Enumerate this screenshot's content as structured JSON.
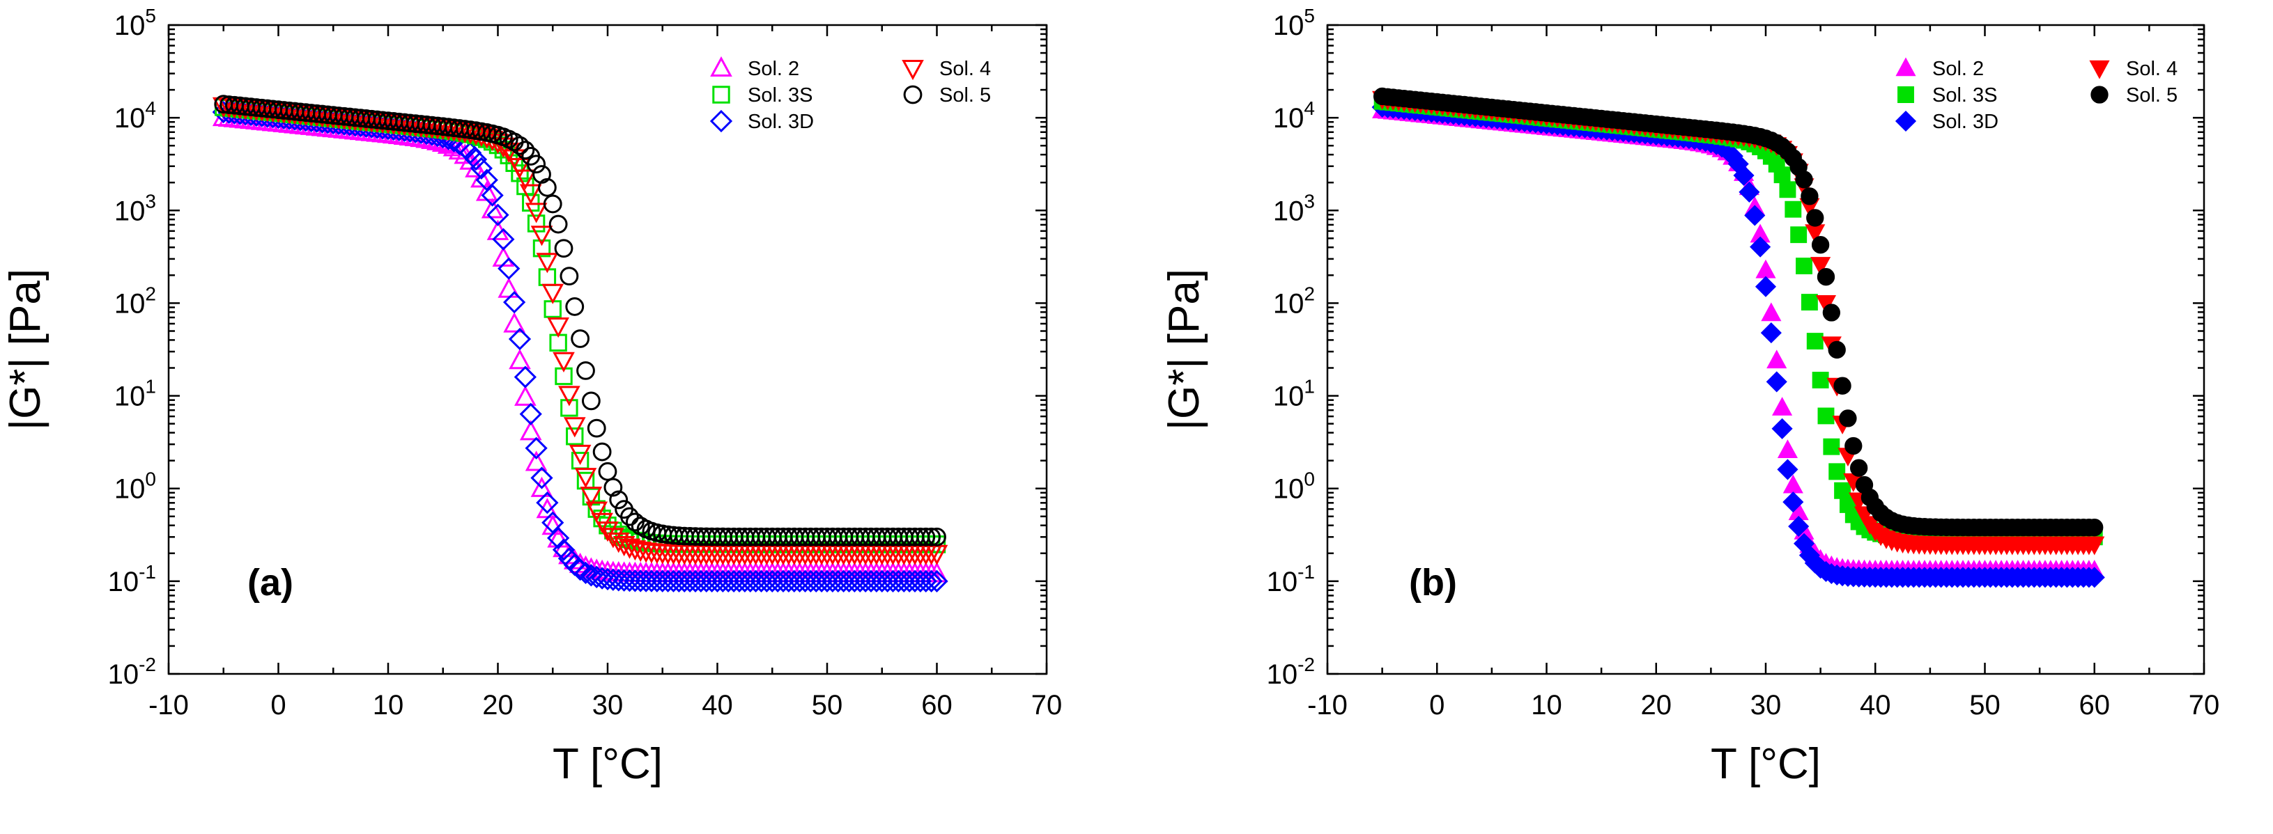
{
  "chart_data": [
    {
      "id": "a",
      "type": "scatter",
      "panel_label": "(a)",
      "filled": false,
      "xlabel": "T [°C]",
      "ylabel": "|G*| [Pa]",
      "xlim": [
        -10,
        70
      ],
      "ylim_log10": [
        -2,
        5
      ],
      "xticks": [
        -10,
        0,
        10,
        20,
        30,
        40,
        50,
        60,
        70
      ],
      "xtick_labels": [
        "-10",
        "0",
        "10",
        "20",
        "30",
        "40",
        "50",
        "60",
        "70"
      ],
      "ytick_exponents": [
        -2,
        -1,
        0,
        1,
        2,
        3,
        4,
        5
      ],
      "ytick_base": "10",
      "ytick_exps_text": [
        "-2",
        "-1",
        "0",
        "1",
        "2",
        "3",
        "4",
        "5"
      ],
      "y_scale": "log",
      "legend_position": "top-right",
      "series": [
        {
          "name": "Sol. 2",
          "marker": "triangle-up",
          "color": "#ff00ff",
          "T_start": -5,
          "T_end": 60,
          "T_step": 0.5,
          "G_low": 10000,
          "G_high": 0.12,
          "T_mid": 22,
          "width": 1.45
        },
        {
          "name": "Sol. 3S",
          "marker": "square",
          "color": "#00e000",
          "T_start": -5,
          "T_end": 60,
          "T_step": 0.5,
          "G_low": 13000,
          "G_high": 0.25,
          "T_mid": 25.5,
          "width": 1.5
        },
        {
          "name": "Sol. 3D",
          "marker": "diamond",
          "color": "#0000ff",
          "T_start": -5,
          "T_end": 60,
          "T_step": 0.5,
          "G_low": 11500,
          "G_high": 0.1,
          "T_mid": 22.3,
          "width": 1.45
        },
        {
          "name": "Sol. 4",
          "marker": "triangle-down",
          "color": "#ff0000",
          "T_start": -5,
          "T_end": 60,
          "T_step": 0.5,
          "G_low": 13500,
          "G_high": 0.2,
          "T_mid": 25.8,
          "width": 1.5
        },
        {
          "name": "Sol. 5",
          "marker": "circle",
          "color": "#000000",
          "T_start": -5,
          "T_end": 60,
          "T_step": 0.5,
          "G_low": 14000,
          "G_high": 0.3,
          "T_mid": 27.5,
          "width": 1.55
        }
      ]
    },
    {
      "id": "b",
      "type": "scatter",
      "panel_label": "(b)",
      "filled": true,
      "xlabel": "T [°C]",
      "ylabel": "|G*| [Pa]",
      "xlim": [
        -10,
        70
      ],
      "ylim_log10": [
        -2,
        5
      ],
      "xticks": [
        -10,
        0,
        10,
        20,
        30,
        40,
        50,
        60,
        70
      ],
      "xtick_labels": [
        "-10",
        "0",
        "10",
        "20",
        "30",
        "40",
        "50",
        "60",
        "70"
      ],
      "ytick_exponents": [
        -2,
        -1,
        0,
        1,
        2,
        3,
        4,
        5
      ],
      "ytick_base": "10",
      "ytick_exps_text": [
        "-2",
        "-1",
        "0",
        "1",
        "2",
        "3",
        "4",
        "5"
      ],
      "y_scale": "log",
      "legend_position": "top-right",
      "series": [
        {
          "name": "Sol. 2",
          "marker": "triangle-up",
          "color": "#ff00ff",
          "T_start": -5,
          "T_end": 60,
          "T_step": 0.5,
          "G_low": 12000,
          "G_high": 0.13,
          "T_mid": 31,
          "width": 1.1
        },
        {
          "name": "Sol. 3S",
          "marker": "square",
          "color": "#00e000",
          "T_start": -5,
          "T_end": 60,
          "T_step": 0.5,
          "G_low": 15000,
          "G_high": 0.3,
          "T_mid": 34.5,
          "width": 1.25
        },
        {
          "name": "Sol. 3D",
          "marker": "diamond",
          "color": "#0000ff",
          "T_start": -5,
          "T_end": 60,
          "T_step": 0.5,
          "G_low": 13000,
          "G_high": 0.11,
          "T_mid": 30.8,
          "width": 1.1
        },
        {
          "name": "Sol. 4",
          "marker": "triangle-down",
          "color": "#ff0000",
          "T_start": -5,
          "T_end": 60,
          "T_step": 0.5,
          "G_low": 16000,
          "G_high": 0.25,
          "T_mid": 36,
          "width": 1.2
        },
        {
          "name": "Sol. 5",
          "marker": "circle",
          "color": "#000000",
          "T_start": -5,
          "T_end": 60,
          "T_step": 0.5,
          "G_low": 17000,
          "G_high": 0.38,
          "T_mid": 36.3,
          "width": 1.3
        }
      ]
    }
  ]
}
